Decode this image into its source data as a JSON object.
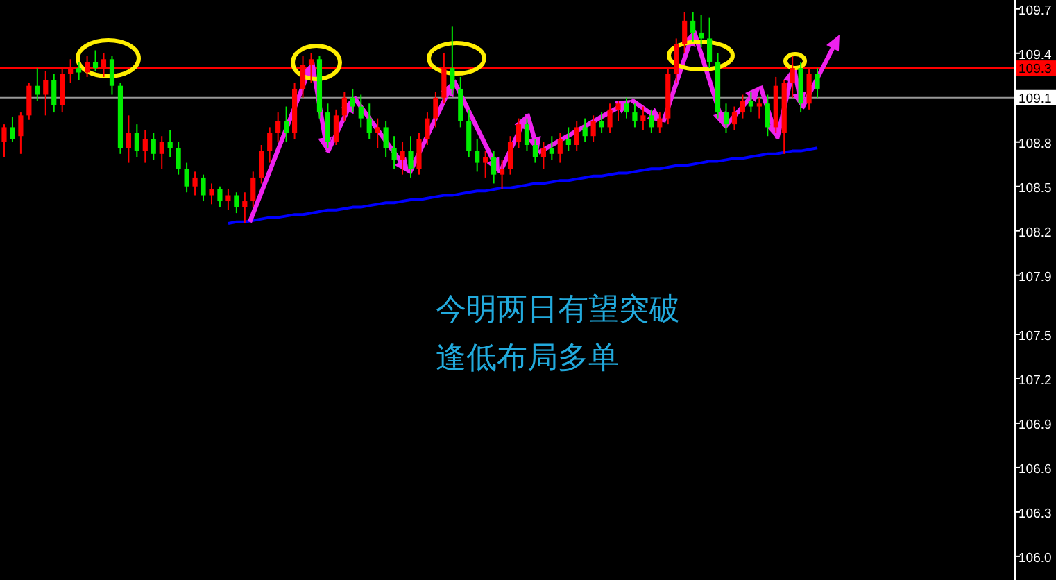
{
  "chart_data": {
    "type": "candlestick",
    "categories": [
      null,
      null,
      null,
      null,
      null,
      null,
      null,
      null,
      null,
      null,
      null,
      null,
      null,
      null,
      null,
      null,
      null,
      null,
      null,
      null,
      null,
      null,
      null,
      null,
      null,
      null,
      null,
      null,
      null,
      null,
      null,
      null,
      null,
      null,
      null,
      null,
      null,
      null,
      null,
      null,
      null,
      null,
      null,
      null,
      null,
      null,
      null,
      null,
      null,
      null,
      null,
      null,
      null,
      null,
      null,
      null,
      null,
      null,
      null,
      null,
      null,
      null,
      null,
      null,
      null,
      null,
      null,
      null,
      null,
      null,
      null,
      null,
      null,
      null,
      null,
      null,
      null,
      null,
      null,
      null,
      null,
      null,
      null,
      null,
      null,
      null,
      null,
      null,
      null,
      null,
      null,
      null,
      null,
      null,
      null,
      null,
      null,
      null,
      null
    ],
    "ohlc": [
      [
        108.8,
        108.92,
        108.7,
        108.9
      ],
      [
        108.9,
        108.97,
        108.8,
        108.82
      ],
      [
        108.84,
        109.0,
        108.72,
        108.98
      ],
      [
        108.98,
        109.2,
        108.95,
        109.18
      ],
      [
        109.18,
        109.3,
        109.08,
        109.12
      ],
      [
        109.12,
        109.28,
        108.98,
        109.22
      ],
      [
        109.22,
        109.26,
        109.0,
        109.05
      ],
      [
        109.05,
        109.3,
        109.0,
        109.26
      ],
      [
        109.26,
        109.36,
        109.2,
        109.3
      ],
      [
        109.3,
        109.34,
        109.22,
        109.27
      ],
      [
        109.27,
        109.38,
        109.24,
        109.34
      ],
      [
        109.34,
        109.42,
        109.28,
        109.3
      ],
      [
        109.3,
        109.4,
        109.24,
        109.36
      ],
      [
        109.36,
        109.38,
        109.12,
        109.18
      ],
      [
        109.18,
        109.2,
        108.72,
        108.76
      ],
      [
        108.76,
        108.98,
        108.66,
        108.86
      ],
      [
        108.86,
        108.92,
        108.7,
        108.74
      ],
      [
        108.74,
        108.88,
        108.66,
        108.82
      ],
      [
        108.82,
        108.86,
        108.68,
        108.72
      ],
      [
        108.72,
        108.84,
        108.62,
        108.8
      ],
      [
        108.8,
        108.88,
        108.7,
        108.76
      ],
      [
        108.76,
        108.8,
        108.58,
        108.62
      ],
      [
        108.62,
        108.66,
        108.46,
        108.5
      ],
      [
        108.5,
        108.6,
        108.44,
        108.56
      ],
      [
        108.56,
        108.58,
        108.4,
        108.44
      ],
      [
        108.44,
        108.52,
        108.38,
        108.48
      ],
      [
        108.48,
        108.5,
        108.36,
        108.4
      ],
      [
        108.4,
        108.48,
        108.34,
        108.44
      ],
      [
        108.44,
        108.46,
        108.32,
        108.36
      ],
      [
        108.36,
        108.46,
        108.25,
        108.4
      ],
      [
        108.4,
        108.6,
        108.36,
        108.56
      ],
      [
        108.56,
        108.78,
        108.52,
        108.74
      ],
      [
        108.74,
        108.9,
        108.66,
        108.86
      ],
      [
        108.86,
        109.0,
        108.8,
        108.94
      ],
      [
        108.94,
        109.04,
        108.8,
        108.86
      ],
      [
        108.86,
        109.2,
        108.82,
        109.16
      ],
      [
        109.16,
        109.38,
        109.1,
        109.32
      ],
      [
        109.32,
        109.4,
        109.2,
        109.36
      ],
      [
        109.36,
        109.38,
        108.96,
        109.0
      ],
      [
        109.0,
        109.06,
        108.76,
        108.8
      ],
      [
        108.8,
        109.02,
        108.78,
        108.98
      ],
      [
        108.98,
        109.14,
        108.94,
        109.1
      ],
      [
        109.1,
        109.16,
        109.0,
        109.04
      ],
      [
        109.04,
        109.12,
        108.9,
        108.96
      ],
      [
        108.96,
        109.06,
        108.82,
        108.86
      ],
      [
        108.86,
        108.96,
        108.76,
        108.9
      ],
      [
        108.9,
        108.94,
        108.7,
        108.76
      ],
      [
        108.76,
        108.84,
        108.62,
        108.68
      ],
      [
        108.68,
        108.8,
        108.58,
        108.74
      ],
      [
        108.74,
        108.84,
        108.56,
        108.62
      ],
      [
        108.62,
        108.86,
        108.58,
        108.82
      ],
      [
        108.82,
        109.0,
        108.78,
        108.96
      ],
      [
        108.96,
        109.14,
        108.9,
        109.1
      ],
      [
        109.1,
        109.4,
        109.06,
        109.3
      ],
      [
        109.3,
        109.58,
        109.12,
        109.16
      ],
      [
        109.16,
        109.24,
        108.9,
        108.94
      ],
      [
        108.94,
        109.02,
        108.7,
        108.74
      ],
      [
        108.74,
        108.82,
        108.6,
        108.66
      ],
      [
        108.66,
        108.74,
        108.56,
        108.7
      ],
      [
        108.7,
        108.74,
        108.52,
        108.58
      ],
      [
        108.58,
        108.68,
        108.48,
        108.62
      ],
      [
        108.62,
        108.84,
        108.58,
        108.8
      ],
      [
        108.8,
        108.96,
        108.76,
        108.92
      ],
      [
        108.92,
        108.96,
        108.74,
        108.78
      ],
      [
        108.78,
        108.82,
        108.66,
        108.7
      ],
      [
        108.7,
        108.8,
        108.62,
        108.76
      ],
      [
        108.76,
        108.84,
        108.68,
        108.72
      ],
      [
        108.72,
        108.86,
        108.66,
        108.82
      ],
      [
        108.82,
        108.9,
        108.74,
        108.78
      ],
      [
        108.78,
        108.94,
        108.74,
        108.9
      ],
      [
        108.9,
        108.96,
        108.8,
        108.84
      ],
      [
        108.84,
        108.98,
        108.8,
        108.94
      ],
      [
        108.94,
        109.0,
        108.86,
        108.9
      ],
      [
        108.9,
        109.06,
        108.86,
        109.02
      ],
      [
        109.02,
        109.08,
        108.94,
        109.06
      ],
      [
        109.06,
        109.1,
        108.96,
        109.0
      ],
      [
        109.0,
        109.06,
        108.9,
        108.94
      ],
      [
        108.94,
        109.04,
        108.88,
        108.98
      ],
      [
        108.98,
        109.02,
        108.86,
        108.9
      ],
      [
        108.9,
        109.0,
        108.86,
        108.96
      ],
      [
        108.96,
        109.3,
        108.92,
        109.26
      ],
      [
        109.26,
        109.5,
        109.2,
        109.46
      ],
      [
        109.46,
        109.68,
        109.4,
        109.62
      ],
      [
        109.62,
        109.68,
        109.48,
        109.54
      ],
      [
        109.54,
        109.66,
        109.44,
        109.5
      ],
      [
        109.5,
        109.64,
        109.3,
        109.34
      ],
      [
        109.34,
        109.4,
        108.96,
        109.0
      ],
      [
        109.0,
        109.06,
        108.86,
        108.92
      ],
      [
        108.92,
        109.04,
        108.88,
        109.0
      ],
      [
        109.0,
        109.12,
        108.96,
        109.08
      ],
      [
        109.08,
        109.14,
        109.0,
        109.04
      ],
      [
        109.04,
        109.1,
        108.96,
        109.06
      ],
      [
        109.06,
        109.12,
        108.84,
        108.9
      ],
      [
        108.9,
        109.24,
        108.86,
        109.18
      ],
      [
        108.86,
        109.22,
        108.72,
        109.2
      ],
      [
        109.2,
        109.38,
        109.1,
        109.3
      ],
      [
        109.3,
        109.34,
        109.0,
        109.06
      ],
      [
        109.06,
        109.3,
        109.02,
        109.26
      ],
      [
        109.26,
        109.3,
        109.1,
        109.16
      ]
    ],
    "colors": [
      "#ff0000",
      "#00ee00",
      "#ff0000",
      "#ff0000",
      "#00ee00",
      "#ff0000",
      "#00ee00",
      "#ff0000",
      "#ff0000",
      "#00ee00",
      "#ff0000",
      "#00ee00",
      "#ff0000",
      "#00ee00",
      "#00ee00",
      "#ff0000",
      "#00ee00",
      "#ff0000",
      "#00ee00",
      "#ff0000",
      "#00ee00",
      "#00ee00",
      "#00ee00",
      "#ff0000",
      "#00ee00",
      "#ff0000",
      "#00ee00",
      "#ff0000",
      "#00ee00",
      "#ff0000",
      "#ff0000",
      "#ff0000",
      "#ff0000",
      "#ff0000",
      "#00ee00",
      "#ff0000",
      "#ff0000",
      "#ff0000",
      "#00ee00",
      "#00ee00",
      "#ff0000",
      "#ff0000",
      "#00ee00",
      "#00ee00",
      "#00ee00",
      "#ff0000",
      "#00ee00",
      "#00ee00",
      "#ff0000",
      "#00ee00",
      "#ff0000",
      "#ff0000",
      "#ff0000",
      "#ff0000",
      "#00ee00",
      "#00ee00",
      "#00ee00",
      "#00ee00",
      "#ff0000",
      "#00ee00",
      "#ff0000",
      "#ff0000",
      "#ff0000",
      "#00ee00",
      "#00ee00",
      "#ff0000",
      "#00ee00",
      "#ff0000",
      "#00ee00",
      "#ff0000",
      "#00ee00",
      "#ff0000",
      "#00ee00",
      "#ff0000",
      "#ff0000",
      "#00ee00",
      "#00ee00",
      "#ff0000",
      "#00ee00",
      "#ff0000",
      "#ff0000",
      "#ff0000",
      "#ff0000",
      "#00ee00",
      "#00ee00",
      "#00ee00",
      "#00ee00",
      "#00ee00",
      "#ff0000",
      "#ff0000",
      "#00ee00",
      "#ff0000",
      "#00ee00",
      "#ff0000",
      "#ff0000",
      "#ff0000",
      "#00ee00",
      "#ff0000",
      "#00ee00"
    ],
    "series": [
      {
        "type": "line",
        "color": "#0000ff",
        "values": [
          null,
          null,
          null,
          null,
          null,
          null,
          null,
          null,
          null,
          null,
          null,
          null,
          null,
          null,
          null,
          null,
          null,
          null,
          null,
          null,
          null,
          null,
          null,
          null,
          null,
          null,
          null,
          108.25,
          108.26,
          108.26,
          108.27,
          108.28,
          108.29,
          108.29,
          108.3,
          108.31,
          108.31,
          108.32,
          108.33,
          108.34,
          108.34,
          108.35,
          108.36,
          108.36,
          108.37,
          108.38,
          108.39,
          108.39,
          108.4,
          108.41,
          108.41,
          108.42,
          108.43,
          108.44,
          108.44,
          108.45,
          108.46,
          108.47,
          108.47,
          108.48,
          108.49,
          108.49,
          108.5,
          108.51,
          108.52,
          108.52,
          108.53,
          108.54,
          108.54,
          108.55,
          108.56,
          108.57,
          108.57,
          108.58,
          108.59,
          108.59,
          108.6,
          108.61,
          108.62,
          108.62,
          108.63,
          108.64,
          108.64,
          108.65,
          108.66,
          108.67,
          108.67,
          108.68,
          108.69,
          108.69,
          108.7,
          108.71,
          108.72,
          108.72,
          108.73,
          108.74,
          108.74,
          108.75,
          108.76
        ]
      }
    ],
    "ylim": [
      105.84,
      109.76
    ],
    "yticks": [
      {
        "value": 106.0,
        "label": "106.0"
      },
      {
        "value": 106.3,
        "label": "106.3"
      },
      {
        "value": 106.6,
        "label": "106.6"
      },
      {
        "value": 106.9,
        "label": "106.9"
      },
      {
        "value": 107.2,
        "label": "107.2"
      },
      {
        "value": 107.5,
        "label": "107.5"
      },
      {
        "value": 107.9,
        "label": "107.9"
      },
      {
        "value": 108.2,
        "label": "108.2"
      },
      {
        "value": 108.5,
        "label": "108.5"
      },
      {
        "value": 108.8,
        "label": "108.8"
      },
      {
        "value": 109.1,
        "label": null
      },
      {
        "value": 109.4,
        "label": "109.4"
      },
      {
        "value": 109.7,
        "label": "109.7"
      }
    ],
    "ref_lines": [
      {
        "axis": "y",
        "value": 109.3,
        "label": "109.3",
        "color": "#ff0000"
      },
      {
        "axis": "y",
        "value": 109.1,
        "label": "109.1",
        "color": "#999999"
      }
    ],
    "annotations": [
      "今明两日有望突破",
      "逢低布局多单"
    ],
    "tick_labels": "y",
    "grid": false
  }
}
